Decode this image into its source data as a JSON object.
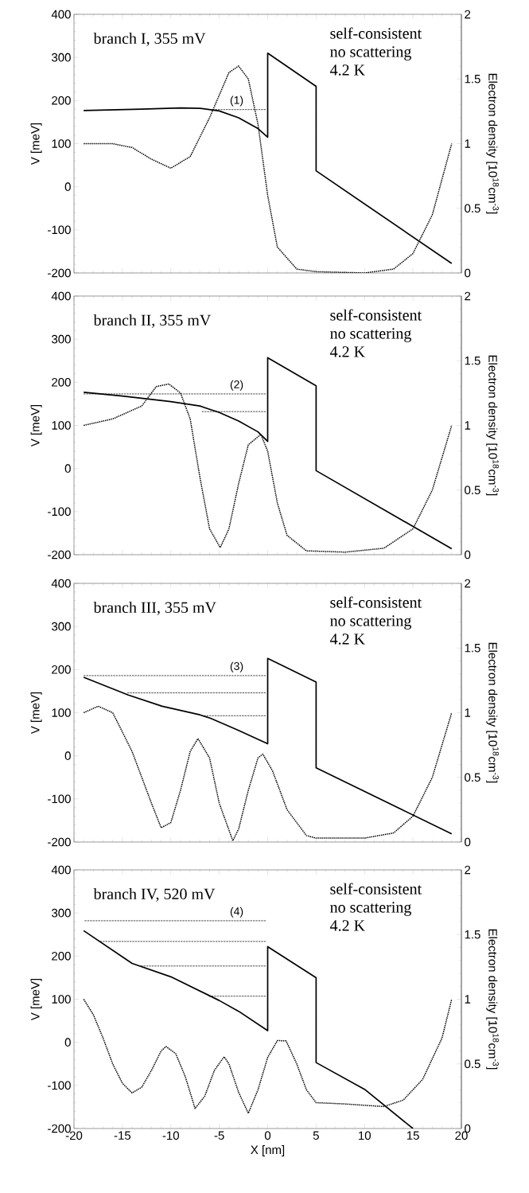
{
  "chart_data": [
    {
      "type": "line",
      "title": "branch I, 355 mV",
      "ylabel": "V [meV]",
      "y2label": "Electron density [10$^{18}$cm$^{-3}$]",
      "annotations": [
        "self-consistent",
        "no scattering",
        "4.2 K",
        "(1)"
      ],
      "xlim": [
        -20,
        20
      ],
      "xticks": [
        -20,
        -15,
        -10,
        -5,
        0,
        5,
        10,
        15,
        20
      ],
      "ylim": [
        -200,
        400
      ],
      "yticks": [
        -200,
        -100,
        0,
        100,
        200,
        300,
        400
      ],
      "y2lim": [
        0,
        2
      ],
      "y2ticks": [
        0,
        0.5,
        1,
        1.5,
        2
      ],
      "tick_labels": "y",
      "series": [
        {
          "color": "#000000",
          "line_style": "solid",
          "x": [
            -19,
            -13,
            -9,
            -7,
            -5,
            -3,
            -1,
            0,
            0,
            5,
            5,
            19
          ],
          "values": [
            177,
            180,
            183,
            182,
            176,
            160,
            135,
            115,
            310,
            233,
            37,
            -178
          ]
        },
        {
          "color": "#000000",
          "line_style": "dotted",
          "axis": "y2",
          "x": [
            -19,
            -16,
            -14,
            -12,
            -10,
            -8,
            -6,
            -4,
            -3,
            -2,
            -1,
            0,
            1,
            3,
            5,
            10,
            13,
            15,
            17,
            19
          ],
          "values": [
            1.0,
            1.0,
            0.97,
            0.88,
            0.81,
            0.9,
            1.2,
            1.55,
            1.6,
            1.5,
            1.15,
            0.6,
            0.2,
            0.03,
            0.01,
            0.0,
            0.03,
            0.15,
            0.45,
            1.0
          ]
        },
        {
          "color": "#000000",
          "line_style": "dashed",
          "x": [
            -5.7,
            -0.2
          ],
          "values": [
            179,
            179
          ]
        }
      ]
    },
    {
      "type": "line",
      "title": "branch II, 355 mV",
      "ylabel": "V [meV]",
      "y2label": "Electron density [10$^{18}$cm$^{-3}$]",
      "annotations": [
        "self-consistent",
        "no scattering",
        "4.2 K",
        "(2)"
      ],
      "xlim": [
        -20,
        20
      ],
      "xticks": [
        -20,
        -15,
        -10,
        -5,
        0,
        5,
        10,
        15,
        20
      ],
      "ylim": [
        -200,
        400
      ],
      "yticks": [
        -200,
        -100,
        0,
        100,
        200,
        300,
        400
      ],
      "y2lim": [
        0,
        2
      ],
      "y2ticks": [
        0,
        0.5,
        1,
        1.5,
        2
      ],
      "tick_labels": "y",
      "series": [
        {
          "color": "#000000",
          "line_style": "solid",
          "x": [
            -19,
            -15,
            -10,
            -7,
            -5,
            -3,
            -1,
            0,
            0,
            5,
            5,
            19
          ],
          "values": [
            177,
            168,
            155,
            145,
            130,
            110,
            85,
            63,
            257,
            192,
            -5,
            -186
          ]
        },
        {
          "color": "#000000",
          "line_style": "dotted",
          "axis": "y2",
          "x": [
            -19,
            -16,
            -13,
            -11.5,
            -10.2,
            -9,
            -8,
            -7,
            -6,
            -4.9,
            -4,
            -3,
            -2,
            -0.7,
            0,
            1,
            2,
            4,
            8,
            12,
            15,
            17,
            19
          ],
          "values": [
            1.0,
            1.05,
            1.15,
            1.3,
            1.32,
            1.25,
            1.05,
            0.6,
            0.2,
            0.055,
            0.2,
            0.55,
            0.85,
            0.93,
            0.8,
            0.4,
            0.15,
            0.03,
            0.02,
            0.05,
            0.2,
            0.5,
            1.0
          ]
        },
        {
          "color": "#000000",
          "line_style": "dashed",
          "x": [
            -19,
            -0.2
          ],
          "values": [
            173,
            173
          ]
        },
        {
          "color": "#000000",
          "line_style": "dashed",
          "x": [
            -6.8,
            -0.2
          ],
          "values": [
            132,
            132
          ]
        }
      ]
    },
    {
      "type": "line",
      "title": "branch III, 355 mV",
      "ylabel": "V [meV]",
      "y2label": "Electron density [10$^{18}$cm$^{-3}$]",
      "annotations": [
        "self-consistent",
        "no scattering",
        "4.2 K",
        "(3)"
      ],
      "xlim": [
        -20,
        20
      ],
      "xticks": [
        -20,
        -15,
        -10,
        -5,
        0,
        5,
        10,
        15,
        20
      ],
      "ylim": [
        -200,
        400
      ],
      "yticks": [
        -200,
        -100,
        0,
        100,
        200,
        300,
        400
      ],
      "y2lim": [
        0,
        2
      ],
      "y2ticks": [
        0,
        0.5,
        1,
        1.5,
        2
      ],
      "tick_labels": "y",
      "series": [
        {
          "color": "#000000",
          "line_style": "solid",
          "x": [
            -19,
            -14.4,
            -10.9,
            -7,
            -5.9,
            -3.1,
            0,
            0,
            5,
            5,
            19
          ],
          "values": [
            182,
            141,
            115,
            95,
            87,
            60,
            28,
            226,
            171,
            -28,
            -181
          ]
        },
        {
          "color": "#000000",
          "line_style": "dotted",
          "axis": "y2",
          "x": [
            -19,
            -17.5,
            -16,
            -14,
            -12,
            -11,
            -10,
            -9,
            -8,
            -7.2,
            -6,
            -5,
            -3.6,
            -3,
            -2,
            -1,
            -0.5,
            0.5,
            2,
            4,
            5,
            10,
            13,
            15,
            17,
            19
          ],
          "values": [
            1.0,
            1.05,
            1.0,
            0.7,
            0.3,
            0.11,
            0.15,
            0.4,
            0.7,
            0.8,
            0.65,
            0.3,
            0.01,
            0.1,
            0.4,
            0.65,
            0.68,
            0.55,
            0.25,
            0.05,
            0.03,
            0.03,
            0.07,
            0.2,
            0.5,
            1.0
          ]
        },
        {
          "color": "#000000",
          "line_style": "dashed",
          "x": [
            -19,
            -0.2
          ],
          "values": [
            186,
            186
          ]
        },
        {
          "color": "#000000",
          "line_style": "dashed",
          "x": [
            -14.5,
            -0.2
          ],
          "values": [
            146,
            146
          ]
        },
        {
          "color": "#000000",
          "line_style": "dashed",
          "x": [
            -6.6,
            -0.2
          ],
          "values": [
            93,
            93
          ]
        }
      ]
    },
    {
      "type": "line",
      "title": "branch IV, 520 mV",
      "xlabel": "X [nm]",
      "ylabel": "V [meV]",
      "y2label": "Electron density [10$^{18}$cm$^{-3}$]",
      "annotations": [
        "self-consistent",
        "no scattering",
        "4.2 K",
        "(4)"
      ],
      "xlim": [
        -20,
        20
      ],
      "xticks": [
        -20,
        -15,
        -10,
        -5,
        0,
        5,
        10,
        15,
        20
      ],
      "ylim": [
        -200,
        400
      ],
      "yticks": [
        -200,
        -100,
        0,
        100,
        200,
        300,
        400
      ],
      "y2lim": [
        0,
        2
      ],
      "y2ticks": [
        0,
        0.5,
        1,
        1.5,
        2
      ],
      "series": [
        {
          "color": "#000000",
          "line_style": "solid",
          "x": [
            -19,
            -14,
            -10,
            -5,
            -3,
            0,
            0,
            5,
            5,
            10,
            15
          ],
          "values": [
            259,
            183,
            152,
            97,
            72,
            27,
            222,
            150,
            -47,
            -109,
            -200
          ]
        },
        {
          "color": "#000000",
          "line_style": "dotted",
          "axis": "y2",
          "x": [
            -19,
            -18,
            -17,
            -16,
            -15,
            -14,
            -13,
            -12,
            -11,
            -10.5,
            -9.5,
            -8.5,
            -7.5,
            -6.5,
            -5.5,
            -4.5,
            -4,
            -3,
            -2,
            -1,
            0,
            1,
            1.9,
            3,
            4,
            5,
            8,
            12,
            14,
            16,
            18,
            19
          ],
          "values": [
            1.0,
            0.88,
            0.7,
            0.5,
            0.35,
            0.275,
            0.32,
            0.45,
            0.6,
            0.634,
            0.58,
            0.4,
            0.155,
            0.25,
            0.45,
            0.555,
            0.5,
            0.28,
            0.118,
            0.3,
            0.55,
            0.68,
            0.678,
            0.5,
            0.3,
            0.2,
            0.19,
            0.17,
            0.22,
            0.38,
            0.7,
            1.0
          ]
        },
        {
          "color": "#000000",
          "line_style": "dashed",
          "x": [
            -18.9,
            -0.2
          ],
          "values": [
            282,
            282
          ]
        },
        {
          "color": "#000000",
          "line_style": "dashed",
          "x": [
            -17.3,
            -0.2
          ],
          "values": [
            234,
            234
          ]
        },
        {
          "color": "#000000",
          "line_style": "dashed",
          "x": [
            -13.1,
            -0.2
          ],
          "values": [
            177,
            177
          ]
        },
        {
          "color": "#000000",
          "line_style": "dashed",
          "x": [
            -6.1,
            -0.2
          ],
          "values": [
            107,
            107
          ]
        }
      ]
    }
  ]
}
